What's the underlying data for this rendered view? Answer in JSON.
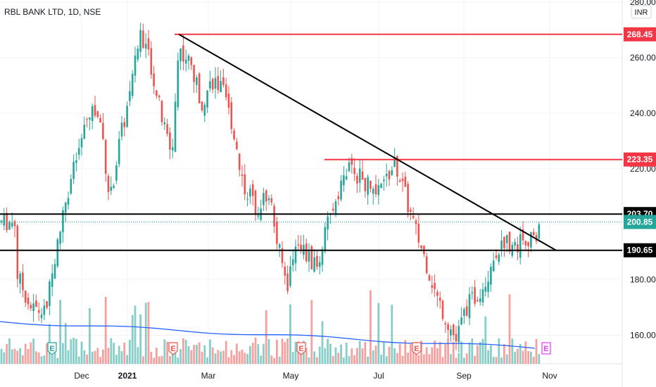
{
  "header": {
    "title": "RBL BANK LTD, 1D, NSE",
    "currency": "INR"
  },
  "chart_data": {
    "type": "candlestick",
    "symbol": "RBL BANK LTD",
    "timeframe": "1D",
    "exchange": "NSE",
    "currency": "INR",
    "y_ticks": [
      "280.00",
      "260.00",
      "240.00",
      "220.00",
      "180.00",
      "160.00"
    ],
    "x_ticks": [
      "Dec",
      "2021",
      "Mar",
      "May",
      "Jul",
      "Sep",
      "Nov"
    ],
    "ylim": [
      148,
      283
    ],
    "grid": true,
    "horizontal_levels": [
      {
        "value": 268.45,
        "label": "268.45",
        "color": "#f23645"
      },
      {
        "value": 223.35,
        "label": "223.35",
        "color": "#f23645"
      },
      {
        "value": 203.7,
        "label": "203.70",
        "color": "#000000"
      },
      {
        "value": 190.65,
        "label": "190.65",
        "color": "#000000"
      }
    ],
    "last_price": {
      "value": 200.85,
      "label": "200.85",
      "color": "#26a69a"
    },
    "trendline": {
      "from": {
        "date": "2021-02-08",
        "price": 268.45
      },
      "to": {
        "date": "2021-11-03",
        "price": 190.65
      },
      "color": "#000000"
    },
    "earnings_markers": [
      {
        "date": "2020-11-10",
        "label": "E",
        "status": "past-up"
      },
      {
        "date": "2021-02-04",
        "label": "E",
        "status": "past-down"
      },
      {
        "date": "2021-05-06",
        "label": "E",
        "status": "past-down"
      },
      {
        "date": "2021-07-27",
        "label": "E",
        "status": "past-down"
      },
      {
        "date": "2021-10-27",
        "label": "E",
        "status": "future"
      }
    ],
    "price_path": [
      [
        "2020-10-16",
        182
      ],
      [
        "2020-10-26",
        170
      ],
      [
        "2020-11-05",
        168
      ],
      [
        "2020-11-13",
        190
      ],
      [
        "2020-11-20",
        210
      ],
      [
        "2020-12-01",
        230
      ],
      [
        "2020-12-08",
        242
      ],
      [
        "2020-12-15",
        236
      ],
      [
        "2020-12-21",
        208
      ],
      [
        "2020-12-28",
        230
      ],
      [
        "2021-01-05",
        248
      ],
      [
        "2021-01-12",
        270
      ],
      [
        "2021-01-19",
        258
      ],
      [
        "2021-01-27",
        238
      ],
      [
        "2021-02-03",
        225
      ],
      [
        "2021-02-08",
        264
      ],
      [
        "2021-02-16",
        258
      ],
      [
        "2021-02-24",
        244
      ],
      [
        "2021-03-04",
        252
      ],
      [
        "2021-03-11",
        248
      ],
      [
        "2021-03-18",
        236
      ],
      [
        "2021-03-26",
        214
      ],
      [
        "2021-04-05",
        206
      ],
      [
        "2021-04-13",
        212
      ],
      [
        "2021-04-19",
        193
      ],
      [
        "2021-04-26",
        178
      ],
      [
        "2021-05-03",
        196
      ],
      [
        "2021-05-10",
        188
      ],
      [
        "2021-05-17",
        184
      ],
      [
        "2021-05-24",
        198
      ],
      [
        "2021-06-01",
        212
      ],
      [
        "2021-06-08",
        220
      ],
      [
        "2021-06-15",
        218
      ],
      [
        "2021-06-22",
        214
      ],
      [
        "2021-06-29",
        210
      ],
      [
        "2021-07-05",
        216
      ],
      [
        "2021-07-12",
        222
      ],
      [
        "2021-07-19",
        210
      ],
      [
        "2021-07-26",
        198
      ],
      [
        "2021-08-03",
        186
      ],
      [
        "2021-08-10",
        174
      ],
      [
        "2021-08-17",
        166
      ],
      [
        "2021-08-24",
        158
      ],
      [
        "2021-08-31",
        170
      ],
      [
        "2021-09-07",
        174
      ],
      [
        "2021-09-14",
        180
      ],
      [
        "2021-09-21",
        190
      ],
      [
        "2021-09-28",
        194
      ],
      [
        "2021-10-05",
        192
      ],
      [
        "2021-10-12",
        196
      ],
      [
        "2021-10-19",
        193
      ],
      [
        "2021-10-22",
        200.85
      ]
    ],
    "volume": {
      "avg_color": "#2962ff",
      "up_color": "#26a69a",
      "down_color": "#ef5350"
    }
  }
}
